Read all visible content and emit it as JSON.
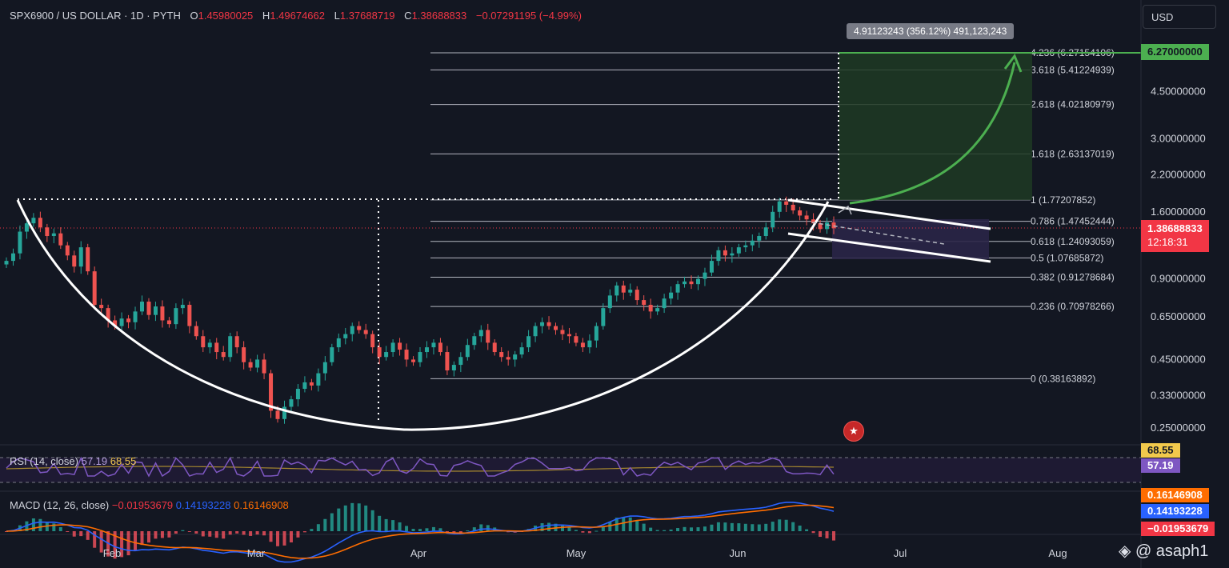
{
  "header": {
    "symbol": "SPX6900 / US DOLLAR · 1D · PYTH",
    "open_label": "O",
    "open": "1.45980025",
    "high_label": "H",
    "high": "1.49674662",
    "low_label": "L",
    "low": "1.37688719",
    "close_label": "C",
    "close": "1.38688833",
    "change": "−0.07291195 (−4.99%)"
  },
  "currency_button": "USD",
  "measure_label": "4.91123243 (356.12%) 491,123,243",
  "price_tags": {
    "target": "6.27000000",
    "current_price": "1.38688833",
    "countdown": "12:18:31"
  },
  "colors": {
    "background": "#131722",
    "up": "#26a69a",
    "down": "#ef5350",
    "grid": "#b2b5be",
    "curve": "#ffffff",
    "target": "#4caf50",
    "rsi": "#7e57c2",
    "macd": "#2962ff",
    "signal": "#ff6d00"
  },
  "rsi_panel": {
    "label": "RSI (14, close)",
    "rsi": "57.19",
    "ma": "68.55",
    "tag_rsi": "57.19",
    "tag_ma": "68.55"
  },
  "macd_panel": {
    "label": "MACD (12, 26, close)",
    "hist": "−0.01953679",
    "macd": "0.14193228",
    "signal": "0.16146908",
    "tag_signal": "0.16146908",
    "tag_macd": "0.14193228",
    "tag_hist": "−0.01953679"
  },
  "watermark": "asaph1",
  "chart_data": {
    "type": "candlestick",
    "symbol": "SPX6900/USD",
    "interval": "1D",
    "scale": "log",
    "y_axis_ticks": [
      6.27,
      4.5,
      3.0,
      2.2,
      1.6,
      0.9,
      0.65,
      0.45,
      0.33,
      0.25
    ],
    "y_axis_labels": [
      "6.27000000",
      "4.50000000",
      "3.00000000",
      "2.20000000",
      "1.60000000",
      "0.90000000",
      "0.65000000",
      "0.45000000",
      "0.33000000",
      "0.25000000"
    ],
    "x_axis_labels": [
      "Feb",
      "Mar",
      "Apr",
      "May",
      "Jun",
      "Jul",
      "Aug"
    ],
    "close_series": [
      1.05,
      1.12,
      1.35,
      1.45,
      1.52,
      1.4,
      1.3,
      1.33,
      1.2,
      1.1,
      1.0,
      1.18,
      0.96,
      0.72,
      0.7,
      0.63,
      0.6,
      0.64,
      0.62,
      0.68,
      0.74,
      0.66,
      0.71,
      0.63,
      0.61,
      0.7,
      0.72,
      0.6,
      0.55,
      0.5,
      0.52,
      0.48,
      0.46,
      0.55,
      0.5,
      0.44,
      0.42,
      0.45,
      0.4,
      0.29,
      0.27,
      0.3,
      0.32,
      0.35,
      0.37,
      0.36,
      0.4,
      0.44,
      0.5,
      0.54,
      0.56,
      0.6,
      0.58,
      0.56,
      0.5,
      0.46,
      0.48,
      0.52,
      0.49,
      0.45,
      0.44,
      0.48,
      0.5,
      0.52,
      0.48,
      0.41,
      0.43,
      0.46,
      0.51,
      0.55,
      0.58,
      0.52,
      0.48,
      0.46,
      0.45,
      0.47,
      0.5,
      0.55,
      0.6,
      0.62,
      0.6,
      0.58,
      0.56,
      0.55,
      0.52,
      0.5,
      0.53,
      0.6,
      0.7,
      0.78,
      0.85,
      0.8,
      0.82,
      0.75,
      0.72,
      0.68,
      0.7,
      0.76,
      0.8,
      0.86,
      0.88,
      0.86,
      0.9,
      0.95,
      1.05,
      1.15,
      1.1,
      1.12,
      1.18,
      1.2,
      1.25,
      1.3,
      1.4,
      1.6,
      1.75,
      1.7,
      1.62,
      1.55,
      1.5,
      1.45,
      1.38,
      1.46,
      1.39
    ],
    "fibonacci": [
      {
        "ratio": "4.236",
        "label": "4.236 (6.27154106)",
        "value": 6.27154106
      },
      {
        "ratio": "3.618",
        "label": "3.618 (5.41224939)",
        "value": 5.41224939
      },
      {
        "ratio": "2.618",
        "label": "2.618 (4.02180979)",
        "value": 4.02180979
      },
      {
        "ratio": "1.618",
        "label": "1.618 (2.63137019)",
        "value": 2.63137019
      },
      {
        "ratio": "1",
        "label": "1 (1.77207852)",
        "value": 1.77207852
      },
      {
        "ratio": "0.786",
        "label": "0.786 (1.47452444)",
        "value": 1.47452444
      },
      {
        "ratio": "0.618",
        "label": "0.618 (1.24093059)",
        "value": 1.24093059
      },
      {
        "ratio": "0.5",
        "label": "0.5 (1.07685872)",
        "value": 1.07685872
      },
      {
        "ratio": "0.382",
        "label": "0.382 (0.91278684)",
        "value": 0.91278684
      },
      {
        "ratio": "0.236",
        "label": "0.236 (0.70978266)",
        "value": 0.70978266
      },
      {
        "ratio": "0",
        "label": "0 (0.38163892)",
        "value": 0.38163892
      }
    ],
    "annotations": [
      "Cup and handle pattern (curved white line)",
      "Falling wedge handle",
      "Green target box to 6.27"
    ]
  }
}
